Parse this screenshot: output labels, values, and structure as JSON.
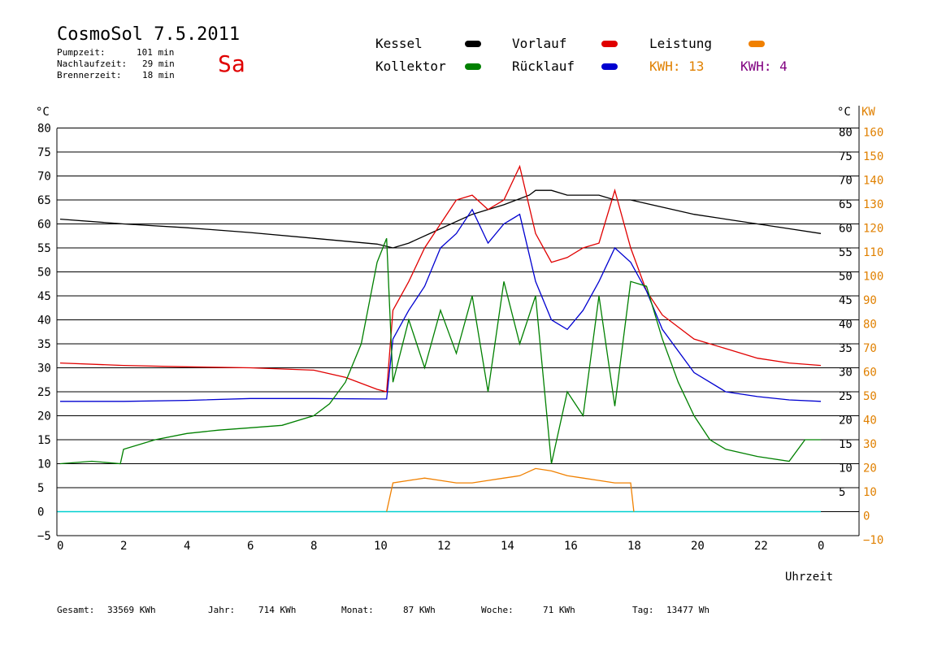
{
  "header": {
    "title": "CosmoSol 7.5.2011",
    "day": "Sa",
    "stats": [
      {
        "label": "Pumpzeit:",
        "value": "101 min"
      },
      {
        "label": "Nachlaufzeit:",
        "value": "29 min"
      },
      {
        "label": "Brennerzeit:",
        "value": "18 min"
      }
    ]
  },
  "legend": {
    "items": [
      {
        "label": "Kessel",
        "color": "#000000"
      },
      {
        "label": "Vorlauf",
        "color": "#e00000"
      },
      {
        "label": "Leistung",
        "color": "#f08000"
      },
      {
        "label": "Kollektor",
        "color": "#008000"
      },
      {
        "label": "Rücklauf",
        "color": "#0000d0"
      }
    ],
    "kwh_orange": "KWH: 13",
    "kwh_purple": "KWH: 4",
    "kwh_orange_color": "#e08000",
    "kwh_purple_color": "#800080"
  },
  "axes": {
    "left_unit": "°C",
    "right_unit_c": "°C",
    "right_unit_kw": "KW",
    "xlabel": "Uhrzeit",
    "x_ticks": [
      "0",
      "2",
      "4",
      "6",
      "8",
      "10",
      "12",
      "14",
      "16",
      "18",
      "20",
      "22",
      "0"
    ],
    "y_left_ticks": [
      "80",
      "75",
      "70",
      "65",
      "60",
      "55",
      "50",
      "45",
      "40",
      "35",
      "30",
      "25",
      "20",
      "15",
      "10",
      "5",
      "0",
      "−5"
    ],
    "y_right_c_ticks": [
      "80",
      "75",
      "70",
      "65",
      "60",
      "55",
      "50",
      "45",
      "40",
      "35",
      "30",
      "25",
      "20",
      "15",
      "10",
      "5"
    ],
    "y_right_kw_ticks": [
      "160",
      "150",
      "140",
      "130",
      "120",
      "110",
      "100",
      "90",
      "80",
      "70",
      "60",
      "50",
      "40",
      "30",
      "20",
      "10",
      "0",
      "−10"
    ]
  },
  "footer": {
    "gesamt_label": "Gesamt:",
    "gesamt": "33569 KWh",
    "jahr_label": "Jahr:",
    "jahr": "714 KWh",
    "monat_label": "Monat:",
    "monat": "87 KWh",
    "woche_label": "Woche:",
    "woche": "71 KWh",
    "tag_label": "Tag:",
    "tag": "13477 Wh"
  },
  "chart_data": {
    "type": "line",
    "title": "CosmoSol 7.5.2011",
    "xlabel": "Uhrzeit",
    "ylabel": "°C",
    "xlim": [
      0,
      24
    ],
    "ylim": [
      -5,
      85
    ],
    "y2label": "KW",
    "y2lim": [
      -10,
      170
    ],
    "grid": true,
    "series": [
      {
        "name": "Kessel",
        "color": "#000000",
        "x": [
          0,
          2,
          4,
          6,
          8,
          10,
          10.5,
          11,
          12,
          13,
          14,
          14.8,
          15,
          15.5,
          16,
          17,
          17.5,
          18,
          19,
          20,
          21,
          22,
          23,
          24
        ],
        "y": [
          61,
          60,
          59.2,
          58.2,
          57,
          55.8,
          55,
          56,
          59,
          62,
          64,
          66,
          67,
          67,
          66,
          66,
          65,
          65,
          63.5,
          62,
          61,
          60,
          59,
          58
        ]
      },
      {
        "name": "Vorlauf",
        "color": "#e00000",
        "x": [
          0,
          2,
          4,
          6,
          8,
          9,
          10,
          10.3,
          10.5,
          11,
          11.5,
          12,
          12.5,
          13,
          13.5,
          14,
          14.5,
          15,
          15.5,
          16,
          16.5,
          17,
          17.5,
          18,
          18.5,
          19,
          20,
          21,
          22,
          23,
          24
        ],
        "y": [
          31,
          30.5,
          30.2,
          30,
          29.5,
          28,
          25.5,
          25,
          42,
          48,
          55,
          60,
          65,
          66,
          63,
          65,
          72,
          58,
          52,
          53,
          55,
          56,
          67,
          55,
          46,
          41,
          36,
          34,
          32,
          31,
          30.5
        ]
      },
      {
        "name": "Rücklauf",
        "color": "#0000d0",
        "x": [
          0,
          2,
          4,
          6,
          8,
          10,
          10.3,
          10.5,
          11,
          11.5,
          12,
          12.5,
          13,
          13.5,
          14,
          14.5,
          15,
          15.5,
          16,
          16.5,
          17,
          17.5,
          18,
          18.5,
          19,
          20,
          21,
          22,
          23,
          24
        ],
        "y": [
          23,
          23,
          23.2,
          23.6,
          23.6,
          23.5,
          23.5,
          36,
          42,
          47,
          55,
          58,
          63,
          56,
          60,
          62,
          48,
          40,
          38,
          42,
          48,
          55,
          52,
          46,
          38,
          29,
          25,
          24,
          23.3,
          23
        ]
      },
      {
        "name": "Kollektor",
        "color": "#008000",
        "x": [
          0,
          1,
          1.9,
          2,
          3,
          4,
          5,
          6,
          7,
          8,
          8.5,
          9,
          9.5,
          10,
          10.3,
          10.5,
          11,
          11.5,
          12,
          12.5,
          13,
          13.5,
          14,
          14.5,
          15,
          15.5,
          16,
          16.5,
          17,
          17.5,
          18,
          18.5,
          19,
          19.5,
          20,
          20.5,
          21,
          22,
          23,
          23.5,
          24
        ],
        "y": [
          10,
          10.5,
          10,
          13,
          15,
          16.3,
          17,
          17.5,
          18,
          20,
          22.5,
          27,
          35,
          52,
          57,
          27,
          40,
          30,
          42,
          33,
          45,
          25,
          48,
          35,
          45,
          10,
          25,
          20,
          45,
          22,
          48,
          47,
          36,
          27,
          20,
          15,
          13,
          11.5,
          10.5,
          15,
          15
        ]
      },
      {
        "name": "Leistung",
        "color": "#f08000",
        "axis": "right",
        "x": [
          10.3,
          10.5,
          11,
          11.5,
          12,
          12.5,
          13,
          13.5,
          14,
          14.5,
          15,
          15.5,
          16,
          16.5,
          17,
          17.5,
          18,
          18.1
        ],
        "y": [
          0,
          12,
          13,
          14,
          13,
          12,
          12,
          13,
          14,
          15,
          18,
          17,
          15,
          14,
          13,
          12,
          12,
          0
        ]
      }
    ]
  }
}
